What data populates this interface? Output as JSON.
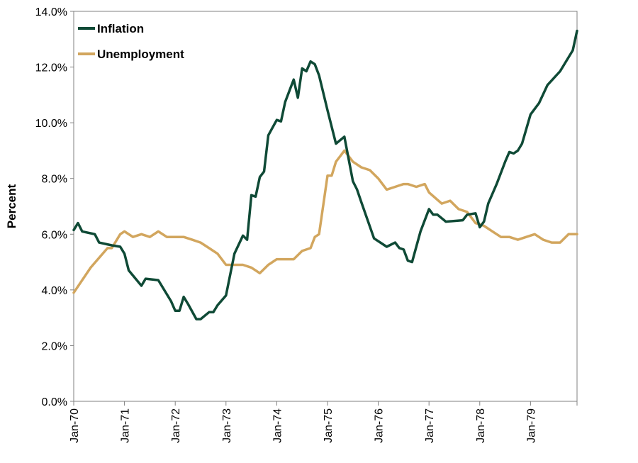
{
  "chart_data": {
    "type": "line",
    "title": "",
    "xlabel": "",
    "ylabel": "Percent",
    "ylim": [
      0,
      14
    ],
    "yticks": [
      "0.0%",
      "2.0%",
      "4.0%",
      "6.0%",
      "8.0%",
      "10.0%",
      "12.0%",
      "14.0%"
    ],
    "x_range": [
      "1970-01",
      "1979-12"
    ],
    "xticks": [
      "Jan-70",
      "Jan-71",
      "Jan-72",
      "Jan-73",
      "Jan-74",
      "Jan-75",
      "Jan-76",
      "Jan-77",
      "Jan-78",
      "Jan-79"
    ],
    "grid": false,
    "legend": "top-left",
    "series": [
      {
        "name": "Inflation",
        "color": "#0f4a36",
        "x": [
          "1970-01",
          "1970-02",
          "1970-03",
          "1970-06",
          "1970-07",
          "1970-10",
          "1970-12",
          "1971-01",
          "1971-02",
          "1971-05",
          "1971-06",
          "1971-09",
          "1971-12",
          "1972-01",
          "1972-02",
          "1972-03",
          "1972-04",
          "1972-06",
          "1972-07",
          "1972-09",
          "1972-10",
          "1972-11",
          "1973-01",
          "1973-03",
          "1973-05",
          "1973-06",
          "1973-07",
          "1973-08",
          "1973-09",
          "1973-10",
          "1973-11",
          "1974-01",
          "1974-02",
          "1974-03",
          "1974-05",
          "1974-06",
          "1974-07",
          "1974-08",
          "1974-09",
          "1974-10",
          "1974-11",
          "1975-01",
          "1975-03",
          "1975-05",
          "1975-07",
          "1975-08",
          "1975-09",
          "1975-12",
          "1976-03",
          "1976-05",
          "1976-06",
          "1976-07",
          "1976-08",
          "1976-09",
          "1976-11",
          "1977-01",
          "1977-02",
          "1977-03",
          "1977-05",
          "1977-09",
          "1977-10",
          "1977-12",
          "1978-01",
          "1978-02",
          "1978-03",
          "1978-05",
          "1978-07",
          "1978-08",
          "1978-09",
          "1978-10",
          "1978-11",
          "1979-01",
          "1979-03",
          "1979-05",
          "1979-08",
          "1979-11",
          "1979-12"
        ],
        "y": [
          6.15,
          6.4,
          6.1,
          6.0,
          5.7,
          5.6,
          5.55,
          5.3,
          4.7,
          4.15,
          4.4,
          4.35,
          3.6,
          3.25,
          3.25,
          3.75,
          3.5,
          2.95,
          2.95,
          3.2,
          3.2,
          3.45,
          3.8,
          5.3,
          5.95,
          5.8,
          7.4,
          7.35,
          8.05,
          8.25,
          9.55,
          10.1,
          10.05,
          10.75,
          11.55,
          10.9,
          11.95,
          11.85,
          12.2,
          12.1,
          11.7,
          10.45,
          9.25,
          9.5,
          7.9,
          7.6,
          7.15,
          5.85,
          5.55,
          5.7,
          5.5,
          5.45,
          5.05,
          5.0,
          6.1,
          6.9,
          6.7,
          6.7,
          6.45,
          6.5,
          6.7,
          6.75,
          6.25,
          6.45,
          7.1,
          7.8,
          8.6,
          8.95,
          8.9,
          9.0,
          9.25,
          10.3,
          10.7,
          11.35,
          11.85,
          12.6,
          13.3
        ]
      },
      {
        "name": "Unemployment",
        "color": "#d2a65e",
        "x": [
          "1970-01",
          "1970-05",
          "1970-09",
          "1970-10",
          "1970-12",
          "1971-01",
          "1971-03",
          "1971-05",
          "1971-07",
          "1971-09",
          "1971-11",
          "1972-01",
          "1972-03",
          "1972-05",
          "1972-07",
          "1972-09",
          "1972-11",
          "1973-01",
          "1973-03",
          "1973-05",
          "1973-07",
          "1973-09",
          "1973-11",
          "1974-01",
          "1974-03",
          "1974-05",
          "1974-07",
          "1974-09",
          "1974-10",
          "1974-11",
          "1975-01",
          "1975-02",
          "1975-03",
          "1975-04",
          "1975-05",
          "1975-07",
          "1975-09",
          "1975-11",
          "1976-01",
          "1976-03",
          "1976-05",
          "1976-07",
          "1976-08",
          "1976-10",
          "1976-12",
          "1977-01",
          "1977-04",
          "1977-06",
          "1977-08",
          "1977-10",
          "1977-12",
          "1978-02",
          "1978-04",
          "1978-06",
          "1978-08",
          "1978-10",
          "1978-12",
          "1979-02",
          "1979-04",
          "1979-06",
          "1979-08",
          "1979-10",
          "1979-12"
        ],
        "y": [
          3.9,
          4.8,
          5.5,
          5.5,
          6.0,
          6.1,
          5.9,
          6.0,
          5.9,
          6.1,
          5.9,
          5.9,
          5.9,
          5.8,
          5.7,
          5.5,
          5.3,
          4.9,
          4.9,
          4.9,
          4.8,
          4.6,
          4.9,
          5.1,
          5.1,
          5.1,
          5.4,
          5.5,
          5.9,
          6.0,
          8.1,
          8.1,
          8.6,
          8.8,
          9.0,
          8.6,
          8.4,
          8.3,
          8.0,
          7.6,
          7.7,
          7.8,
          7.8,
          7.7,
          7.8,
          7.5,
          7.1,
          7.2,
          6.9,
          6.8,
          6.4,
          6.3,
          6.1,
          5.9,
          5.9,
          5.8,
          5.9,
          6.0,
          5.8,
          5.7,
          5.7,
          6.0,
          6.0
        ]
      }
    ]
  }
}
